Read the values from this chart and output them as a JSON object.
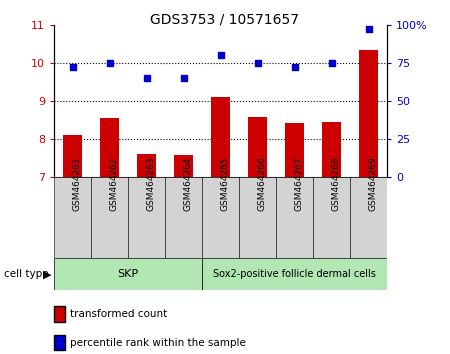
{
  "title": "GDS3753 / 10571657",
  "samples": [
    "GSM464261",
    "GSM464262",
    "GSM464263",
    "GSM464264",
    "GSM464265",
    "GSM464266",
    "GSM464267",
    "GSM464268",
    "GSM464269"
  ],
  "transformed_count": [
    8.1,
    8.55,
    7.6,
    7.58,
    9.1,
    8.58,
    8.42,
    8.45,
    10.35
  ],
  "percentile_rank": [
    72,
    75,
    65,
    65,
    80,
    75,
    72,
    75,
    97
  ],
  "ylim_left": [
    7,
    11
  ],
  "ylim_right": [
    0,
    100
  ],
  "yticks_left": [
    7,
    8,
    9,
    10,
    11
  ],
  "yticks_right": [
    0,
    25,
    50,
    75,
    100
  ],
  "bar_color": "#cc0000",
  "dot_color": "#0000cc",
  "legend_items": [
    "transformed count",
    "percentile rank within the sample"
  ],
  "cell_type_label": "cell type",
  "skp_count": 4,
  "sox2_count": 5,
  "skp_label": "SKP",
  "sox2_label": "Sox2-positive follicle dermal cells",
  "cell_band_color": "#b2e6b2",
  "sample_band_color": "#d3d3d3",
  "grid_ticks": [
    8,
    9,
    10
  ]
}
